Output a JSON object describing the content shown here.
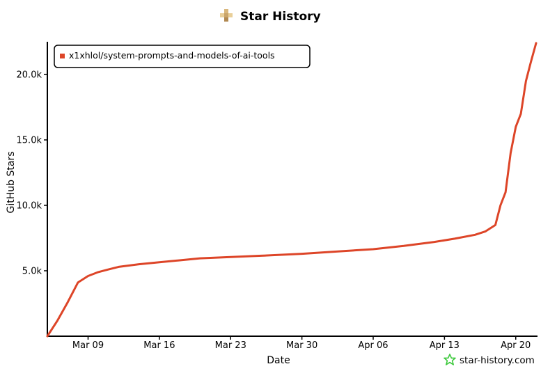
{
  "chart_data": {
    "type": "line",
    "title": "Star History",
    "xlabel": "Date",
    "ylabel": "GitHub Stars",
    "x_tick_labels": [
      "Mar 09",
      "Mar 16",
      "Mar 23",
      "Mar 30",
      "Apr 06",
      "Apr 13",
      "Apr 20"
    ],
    "y_tick_labels": [
      "5.0k",
      "10.0k",
      "15.0k",
      "20.0k"
    ],
    "y_ticks": [
      5000,
      10000,
      15000,
      20000
    ],
    "x_range": [
      "2025-03-05",
      "2025-04-22"
    ],
    "ylim": [
      0,
      22500
    ],
    "grid": false,
    "legend_position": "top-left",
    "series": [
      {
        "name": "x1xhlol/system-prompts-and-models-of-ai-tools",
        "color": "#dd4528",
        "points": [
          [
            "2025-03-05",
            0
          ],
          [
            "2025-03-06",
            1200
          ],
          [
            "2025-03-07",
            2600
          ],
          [
            "2025-03-08",
            4100
          ],
          [
            "2025-03-09",
            4600
          ],
          [
            "2025-03-10",
            4900
          ],
          [
            "2025-03-11",
            5100
          ],
          [
            "2025-03-12",
            5300
          ],
          [
            "2025-03-14",
            5500
          ],
          [
            "2025-03-16",
            5650
          ],
          [
            "2025-03-18",
            5800
          ],
          [
            "2025-03-20",
            5950
          ],
          [
            "2025-03-23",
            6050
          ],
          [
            "2025-03-26",
            6150
          ],
          [
            "2025-03-30",
            6300
          ],
          [
            "2025-04-02",
            6450
          ],
          [
            "2025-04-06",
            6650
          ],
          [
            "2025-04-09",
            6900
          ],
          [
            "2025-04-12",
            7200
          ],
          [
            "2025-04-14",
            7450
          ],
          [
            "2025-04-16",
            7750
          ],
          [
            "2025-04-17",
            8000
          ],
          [
            "2025-04-18",
            8500
          ],
          [
            "2025-04-18.5",
            10000
          ],
          [
            "2025-04-19",
            11000
          ],
          [
            "2025-04-19.5",
            14000
          ],
          [
            "2025-04-20",
            16000
          ],
          [
            "2025-04-20.5",
            17000
          ],
          [
            "2025-04-21",
            19500
          ],
          [
            "2025-04-21.5",
            21000
          ],
          [
            "2025-04-22",
            22400
          ]
        ]
      }
    ]
  },
  "watermark": "star-history.com",
  "colors": {
    "line": "#dd4528",
    "axis": "#000000",
    "watermark_icon": "#3ec93e",
    "logo": "#c9a46a"
  },
  "icons": {
    "title_logo": "star-history-logo-icon",
    "watermark_logo": "green-star-icon"
  }
}
